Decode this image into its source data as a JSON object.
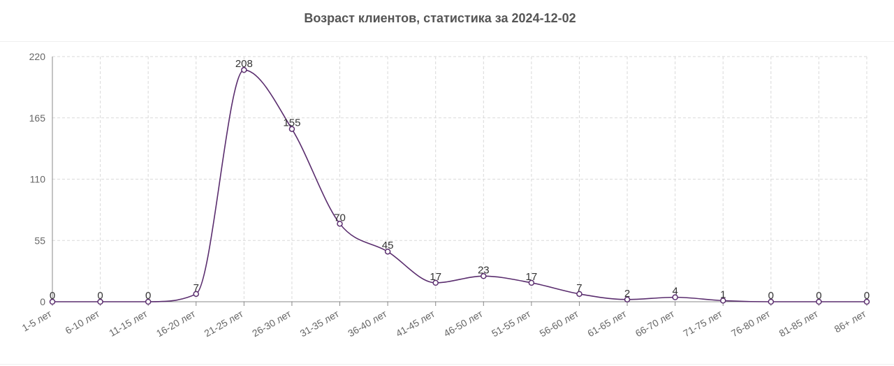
{
  "chart_title": "Возраст клиентов, статистика за 2024-12-02",
  "colors": {
    "line": "#5a2d6e",
    "grid": "#d9d9d9",
    "axis": "#888888",
    "text": "#555555"
  },
  "chart_data": {
    "type": "line",
    "title": "Возраст клиентов, статистика за 2024-12-02",
    "xlabel": "",
    "ylabel": "",
    "categories": [
      "1-5 лет",
      "6-10 лет",
      "11-15 лет",
      "16-20 лет",
      "21-25 лет",
      "26-30 лет",
      "31-35 лет",
      "36-40 лет",
      "41-45 лет",
      "46-50 лет",
      "51-55 лет",
      "56-60 лет",
      "61-65 лет",
      "66-70 лет",
      "71-75 лет",
      "76-80 лет",
      "81-85 лет",
      "86+ лет"
    ],
    "series": [
      {
        "values": [
          0,
          0,
          0,
          7,
          208,
          155,
          70,
          45,
          17,
          23,
          17,
          7,
          2,
          4,
          1,
          0,
          0,
          0
        ]
      }
    ],
    "ylim": [
      0,
      220
    ],
    "yticks": [
      0,
      55,
      110,
      165,
      220
    ],
    "grid": true,
    "data_labels": true,
    "smooth": true
  }
}
